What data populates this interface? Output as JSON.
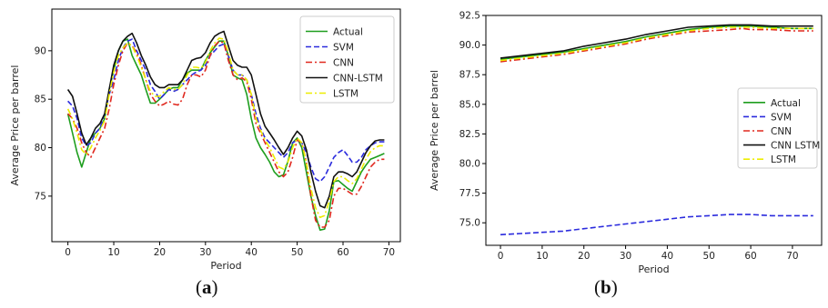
{
  "colors": {
    "Actual": "#1e9e1e",
    "SVM": "#2b2bdd",
    "CNN": "#e0281e",
    "CNN-LSTM": "#111111",
    "LSTM": "#eded00"
  },
  "captions": {
    "a": "a",
    "b": "b"
  },
  "chart_data": [
    {
      "type": "line",
      "id": "a",
      "xlabel": "Period",
      "ylabel": "Average Price per barrel",
      "xlim": [
        -3.5,
        72.5
      ],
      "ylim": [
        70.3,
        94.3
      ],
      "xticks": [
        0,
        10,
        20,
        30,
        40,
        50,
        60,
        70
      ],
      "yticks": [
        75,
        80,
        85,
        90
      ],
      "legend_position": "top-right",
      "series": [
        {
          "name": "Actual",
          "style": "solid",
          "x": [
            0,
            1,
            2,
            3,
            4,
            5,
            6,
            7,
            8,
            9,
            10,
            11,
            12,
            13,
            14,
            15,
            16,
            17,
            18,
            19,
            20,
            21,
            22,
            23,
            24,
            25,
            26,
            27,
            28,
            29,
            30,
            31,
            32,
            33,
            34,
            35,
            36,
            37,
            38,
            39,
            40,
            41,
            42,
            43,
            44,
            45,
            46,
            47,
            48,
            49,
            50,
            51,
            52,
            53,
            54,
            55,
            56,
            57,
            58,
            59,
            60,
            61,
            62,
            63,
            64,
            65,
            66,
            67,
            68,
            69
          ],
          "y": [
            83.5,
            81.5,
            79.5,
            78.0,
            79.5,
            81.0,
            81.5,
            82.0,
            83.0,
            86.0,
            88.0,
            90.0,
            91.0,
            91.2,
            89.5,
            88.5,
            87.5,
            86.0,
            84.6,
            84.6,
            85.0,
            85.5,
            86.0,
            86.2,
            86.2,
            87.0,
            87.7,
            88.0,
            88.0,
            88.0,
            89.0,
            89.8,
            90.4,
            91.0,
            91.0,
            89.5,
            87.5,
            87.2,
            87.0,
            85.5,
            83.0,
            81.0,
            80.0,
            79.3,
            78.5,
            77.5,
            77.0,
            77.2,
            78.6,
            80.5,
            81.0,
            80.0,
            77.5,
            75.0,
            73.0,
            71.5,
            71.6,
            73.5,
            76.5,
            76.6,
            76.2,
            75.8,
            75.5,
            76.5,
            77.5,
            78.2,
            78.8,
            79.0,
            79.2,
            79.4
          ]
        },
        {
          "name": "SVM",
          "style": "dashed",
          "x": [
            0,
            1,
            2,
            3,
            4,
            5,
            6,
            7,
            8,
            9,
            10,
            11,
            12,
            13,
            14,
            15,
            16,
            17,
            18,
            19,
            20,
            21,
            22,
            23,
            24,
            25,
            26,
            27,
            28,
            29,
            30,
            31,
            32,
            33,
            34,
            35,
            36,
            37,
            38,
            39,
            40,
            41,
            42,
            43,
            44,
            45,
            46,
            47,
            48,
            49,
            50,
            51,
            52,
            53,
            54,
            55,
            56,
            57,
            58,
            59,
            60,
            61,
            62,
            63,
            64,
            65,
            66,
            67,
            68,
            69
          ],
          "y": [
            84.8,
            84.3,
            83.0,
            81.0,
            80.2,
            80.5,
            81.5,
            82.0,
            83.5,
            85.5,
            87.0,
            89.0,
            90.3,
            91.0,
            91.2,
            90.0,
            89.0,
            88.0,
            86.5,
            85.8,
            85.0,
            85.5,
            86.0,
            85.8,
            86.0,
            86.5,
            87.0,
            87.5,
            87.8,
            88.0,
            88.5,
            89.5,
            90.0,
            90.5,
            90.7,
            89.5,
            88.0,
            87.5,
            87.5,
            87.0,
            85.5,
            83.5,
            82.0,
            81.0,
            80.5,
            80.0,
            79.5,
            79.0,
            79.5,
            80.5,
            80.8,
            80.5,
            79.5,
            78.0,
            76.8,
            76.5,
            77.0,
            78.0,
            79.0,
            79.5,
            79.8,
            79.2,
            78.5,
            78.5,
            79.0,
            79.8,
            80.2,
            80.5,
            80.6,
            80.6
          ]
        },
        {
          "name": "CNN",
          "style": "dashdot",
          "x": [
            0,
            1,
            2,
            3,
            4,
            5,
            6,
            7,
            8,
            9,
            10,
            11,
            12,
            13,
            14,
            15,
            16,
            17,
            18,
            19,
            20,
            21,
            22,
            23,
            24,
            25,
            26,
            27,
            28,
            29,
            30,
            31,
            32,
            33,
            34,
            35,
            36,
            37,
            38,
            39,
            40,
            41,
            42,
            43,
            44,
            45,
            46,
            47,
            48,
            49,
            50,
            51,
            52,
            53,
            54,
            55,
            56,
            57,
            58,
            59,
            60,
            61,
            62,
            63,
            64,
            65,
            66,
            67,
            68,
            69
          ],
          "y": [
            83.5,
            83.0,
            82.0,
            80.5,
            79.5,
            79.0,
            80.0,
            81.0,
            82.0,
            84.0,
            86.5,
            88.5,
            90.0,
            90.8,
            90.5,
            89.8,
            88.5,
            87.0,
            85.5,
            84.8,
            84.3,
            84.5,
            84.8,
            84.5,
            84.4,
            85.0,
            86.5,
            87.5,
            87.5,
            87.3,
            88.0,
            89.5,
            90.5,
            91.0,
            90.8,
            89.0,
            87.5,
            87.0,
            87.2,
            86.8,
            85.0,
            82.5,
            81.5,
            80.5,
            79.5,
            78.5,
            77.5,
            77.0,
            77.5,
            79.0,
            80.8,
            80.5,
            78.5,
            75.0,
            72.5,
            71.8,
            71.8,
            72.5,
            75.0,
            75.8,
            75.8,
            75.5,
            75.2,
            75.2,
            76.0,
            77.0,
            78.0,
            78.5,
            78.8,
            78.8
          ]
        },
        {
          "name": "CNN-LSTM",
          "style": "solid",
          "x": [
            0,
            1,
            2,
            3,
            4,
            5,
            6,
            7,
            8,
            9,
            10,
            11,
            12,
            13,
            14,
            15,
            16,
            17,
            18,
            19,
            20,
            21,
            22,
            23,
            24,
            25,
            26,
            27,
            28,
            29,
            30,
            31,
            32,
            33,
            34,
            35,
            36,
            37,
            38,
            39,
            40,
            41,
            42,
            43,
            44,
            45,
            46,
            47,
            48,
            49,
            50,
            51,
            52,
            53,
            54,
            55,
            56,
            57,
            58,
            59,
            60,
            61,
            62,
            63,
            64,
            65,
            66,
            67,
            68,
            69
          ],
          "y": [
            86.0,
            85.3,
            83.5,
            81.5,
            80.3,
            81.0,
            82.0,
            82.5,
            83.5,
            86.0,
            88.5,
            90.0,
            91.0,
            91.5,
            91.8,
            90.8,
            89.5,
            88.5,
            87.3,
            86.5,
            86.2,
            86.2,
            86.5,
            86.5,
            86.5,
            87.0,
            88.0,
            89.0,
            89.2,
            89.3,
            89.8,
            90.8,
            91.5,
            91.8,
            92.0,
            90.5,
            89.0,
            88.5,
            88.3,
            88.3,
            87.5,
            85.5,
            83.5,
            82.2,
            81.5,
            80.8,
            80.0,
            79.3,
            80.0,
            81.0,
            81.7,
            81.2,
            79.8,
            77.5,
            75.5,
            74.0,
            73.8,
            75.0,
            77.0,
            77.5,
            77.5,
            77.3,
            77.0,
            77.5,
            78.5,
            79.5,
            80.2,
            80.7,
            80.8,
            80.8
          ]
        },
        {
          "name": "LSTM",
          "style": "dashdot",
          "x": [
            0,
            1,
            2,
            3,
            4,
            5,
            6,
            7,
            8,
            9,
            10,
            11,
            12,
            13,
            14,
            15,
            16,
            17,
            18,
            19,
            20,
            21,
            22,
            23,
            24,
            25,
            26,
            27,
            28,
            29,
            30,
            31,
            32,
            33,
            34,
            35,
            36,
            37,
            38,
            39,
            40,
            41,
            42,
            43,
            44,
            45,
            46,
            47,
            48,
            49,
            50,
            51,
            52,
            53,
            54,
            55,
            56,
            57,
            58,
            59,
            60,
            61,
            62,
            63,
            64,
            65,
            66,
            67,
            68,
            69
          ],
          "y": [
            84.0,
            83.0,
            81.5,
            79.8,
            79.3,
            80.0,
            81.0,
            81.8,
            82.8,
            85.5,
            87.8,
            89.5,
            90.3,
            90.8,
            90.5,
            89.5,
            88.3,
            87.0,
            85.8,
            85.3,
            85.3,
            85.8,
            86.2,
            86.0,
            86.0,
            86.5,
            87.5,
            88.3,
            88.3,
            88.2,
            88.8,
            90.0,
            90.8,
            91.3,
            91.2,
            89.8,
            88.0,
            87.5,
            87.5,
            87.0,
            85.5,
            83.0,
            81.8,
            80.8,
            80.0,
            79.0,
            78.0,
            77.8,
            78.5,
            80.0,
            81.0,
            80.5,
            78.5,
            75.8,
            73.8,
            72.8,
            73.0,
            74.5,
            76.5,
            77.0,
            77.0,
            76.6,
            76.3,
            76.8,
            77.8,
            78.8,
            79.6,
            80.0,
            80.2,
            80.2
          ]
        }
      ]
    },
    {
      "type": "line",
      "id": "b",
      "xlabel": "Period",
      "ylabel": "Average Price per barrel",
      "xlim": [
        -3.5,
        77
      ],
      "ylim": [
        73.1,
        92.5
      ],
      "xticks": [
        0,
        10,
        20,
        30,
        40,
        50,
        60,
        70
      ],
      "yticks": [
        75.0,
        77.5,
        80.0,
        82.5,
        85.0,
        87.5,
        90.0,
        92.5
      ],
      "ytick_labels": [
        "75.0",
        "77.5",
        "80.0",
        "82.5",
        "85.0",
        "87.5",
        "90.0",
        "92.5"
      ],
      "legend_position": "center-right",
      "series": [
        {
          "name": "Actual",
          "style": "solid",
          "x": [
            0,
            5,
            10,
            15,
            20,
            25,
            30,
            35,
            40,
            45,
            50,
            55,
            58,
            60,
            65,
            70,
            75
          ],
          "y": [
            88.8,
            89.0,
            89.2,
            89.4,
            89.7,
            90.0,
            90.3,
            90.7,
            91.0,
            91.3,
            91.5,
            91.6,
            91.6,
            91.6,
            91.5,
            91.4,
            91.4
          ]
        },
        {
          "name": "SVM",
          "style": "dashed",
          "x": [
            0,
            5,
            10,
            15,
            20,
            25,
            30,
            35,
            40,
            45,
            50,
            55,
            58,
            60,
            65,
            70,
            75
          ],
          "y": [
            74.0,
            74.1,
            74.2,
            74.3,
            74.5,
            74.7,
            74.9,
            75.1,
            75.3,
            75.5,
            75.6,
            75.7,
            75.7,
            75.7,
            75.6,
            75.6,
            75.6
          ]
        },
        {
          "name": "CNN",
          "style": "dashdot",
          "x": [
            0,
            5,
            10,
            15,
            20,
            25,
            30,
            35,
            40,
            45,
            50,
            55,
            58,
            60,
            65,
            70,
            75
          ],
          "y": [
            88.6,
            88.8,
            89.0,
            89.2,
            89.5,
            89.8,
            90.1,
            90.5,
            90.8,
            91.1,
            91.2,
            91.3,
            91.4,
            91.3,
            91.3,
            91.2,
            91.2
          ]
        },
        {
          "name": "CNN LSTM",
          "style": "solid",
          "x": [
            0,
            5,
            10,
            15,
            20,
            25,
            30,
            35,
            40,
            45,
            50,
            55,
            58,
            60,
            65,
            70,
            75
          ],
          "y": [
            88.9,
            89.1,
            89.3,
            89.5,
            89.9,
            90.2,
            90.5,
            90.9,
            91.2,
            91.5,
            91.6,
            91.7,
            91.7,
            91.7,
            91.6,
            91.6,
            91.6
          ]
        },
        {
          "name": "LSTM",
          "style": "dashdot",
          "x": [
            0,
            5,
            10,
            15,
            20,
            25,
            30,
            35,
            40,
            45,
            50,
            55,
            58,
            60,
            65,
            70,
            75
          ],
          "y": [
            88.7,
            88.9,
            89.1,
            89.3,
            89.6,
            89.9,
            90.2,
            90.6,
            90.9,
            91.2,
            91.4,
            91.5,
            91.5,
            91.5,
            91.4,
            91.4,
            91.4
          ]
        }
      ]
    }
  ]
}
